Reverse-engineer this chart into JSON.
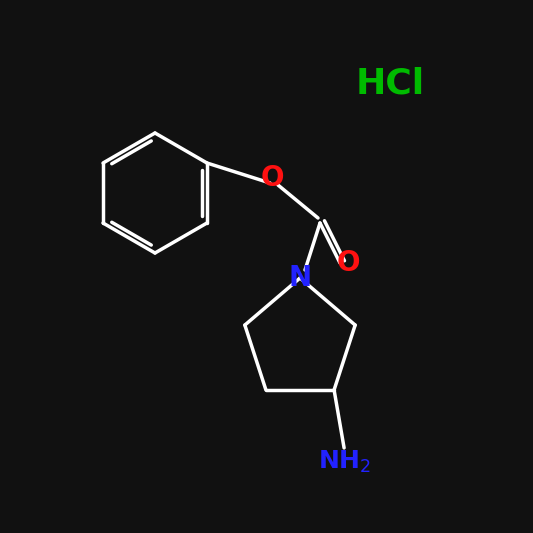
{
  "bg_color": "#111111",
  "bond_color": "#ffffff",
  "n_color": "#2222ff",
  "o_color": "#ff1111",
  "hcl_color": "#00bb00",
  "nh2_color": "#2222ff",
  "hcl_text": "HCl",
  "nh2_text": "NH2",
  "n_text": "N",
  "o_text": "O",
  "lw": 2.5
}
